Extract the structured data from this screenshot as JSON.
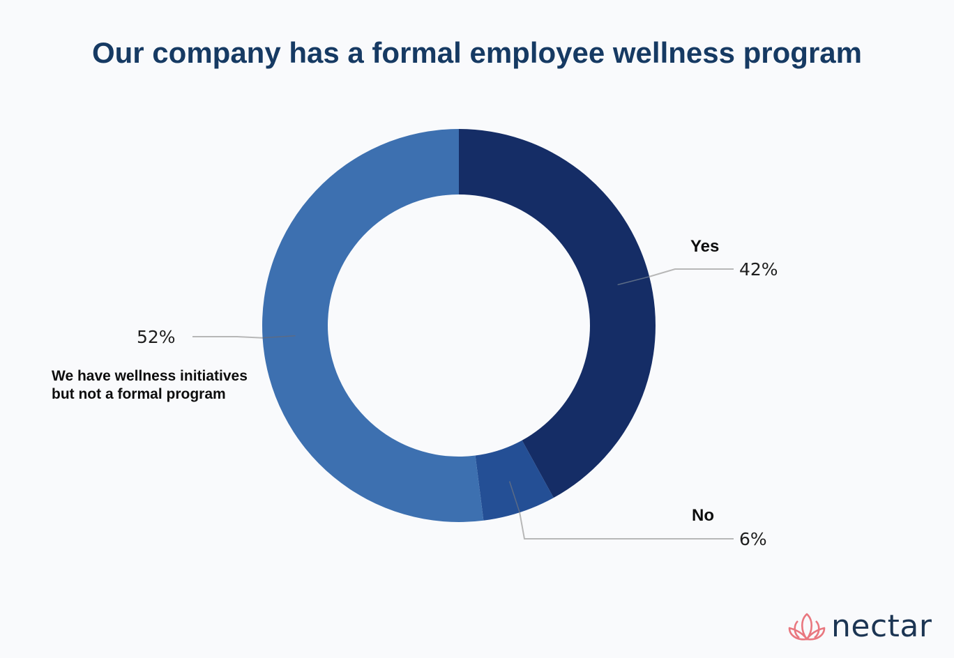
{
  "title": "Our company has a formal employee wellness program",
  "brand": {
    "name": "nectar",
    "logo_color": "#e9777f",
    "text_color": "#1c3553"
  },
  "chart_data": {
    "type": "pie",
    "variant": "donut",
    "title": "Our company has a formal employee wellness program",
    "slices": [
      {
        "label": "Yes",
        "value": 42,
        "value_label": "42%",
        "color": "#152d66"
      },
      {
        "label": "No",
        "value": 6,
        "value_label": "6%",
        "color": "#244f95"
      },
      {
        "label": "We have wellness initiatives but not a formal program",
        "value": 52,
        "value_label": "52%",
        "color": "#3d70b0"
      }
    ],
    "start_angle": "12 o'clock",
    "direction": "clockwise",
    "legend": "none"
  }
}
